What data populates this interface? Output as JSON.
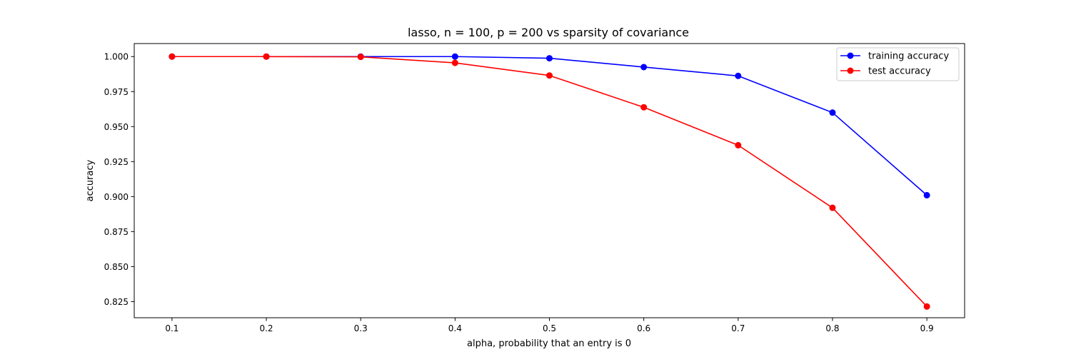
{
  "chart_data": {
    "type": "line",
    "title": "lasso, n = 100, p = 200 vs sparsity of covariance",
    "xlabel": "alpha, probability that an entry is 0",
    "ylabel": "accuracy",
    "x": [
      0.1,
      0.2,
      0.3,
      0.4,
      0.5,
      0.6,
      0.7,
      0.8,
      0.9
    ],
    "xticks": [
      "0.1",
      "0.2",
      "0.3",
      "0.4",
      "0.5",
      "0.6",
      "0.7",
      "0.8",
      "0.9"
    ],
    "yticks": [
      "0.825",
      "0.850",
      "0.875",
      "0.900",
      "0.925",
      "0.950",
      "0.975",
      "1.000"
    ],
    "xlim": [
      0.06,
      0.94
    ],
    "ylim": [
      0.8135,
      1.0093
    ],
    "grid": false,
    "legend_position": "top-right",
    "series": [
      {
        "name": "training accuracy",
        "color": "#0000ff",
        "marker": "circle",
        "values": [
          1.0,
          1.0,
          1.0,
          1.0,
          0.9988,
          0.9925,
          0.9862,
          0.96,
          0.901
        ]
      },
      {
        "name": "test accuracy",
        "color": "#ff0000",
        "marker": "circle",
        "values": [
          1.0,
          1.0,
          0.9998,
          0.9955,
          0.9865,
          0.9638,
          0.9367,
          0.892,
          0.8215
        ]
      }
    ]
  }
}
